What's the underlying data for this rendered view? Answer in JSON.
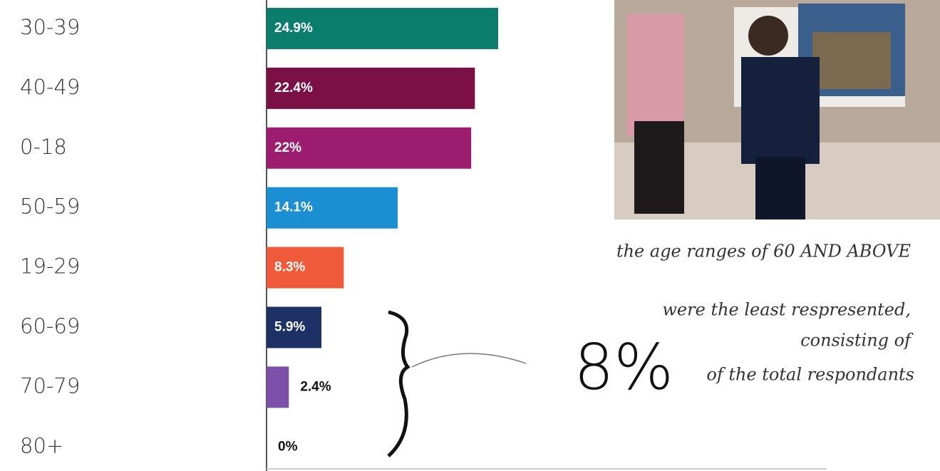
{
  "chart_data": {
    "type": "bar",
    "orientation": "horizontal",
    "categories": [
      "30-39",
      "40-49",
      "0-18",
      "50-59",
      "19-29",
      "60-69",
      "70-79",
      "80+"
    ],
    "values": [
      24.9,
      22.4,
      22,
      14.1,
      8.3,
      5.9,
      2.4,
      0
    ],
    "value_labels": [
      "24.9%",
      "22.4%",
      "22%",
      "14.1%",
      "8.3%",
      "5.9%",
      "2.4%",
      "0%"
    ],
    "colors": [
      "#0b7d6f",
      "#7b1046",
      "#9c1d70",
      "#1b8fd1",
      "#ef5a3b",
      "#1d3167",
      "#7c4fa9",
      "#7c4fa9"
    ],
    "annotations": [
      "the age ranges of 60 AND ABOVE",
      "were the least respresented,",
      "consisting of",
      "8%",
      "of the total respondants"
    ]
  }
}
